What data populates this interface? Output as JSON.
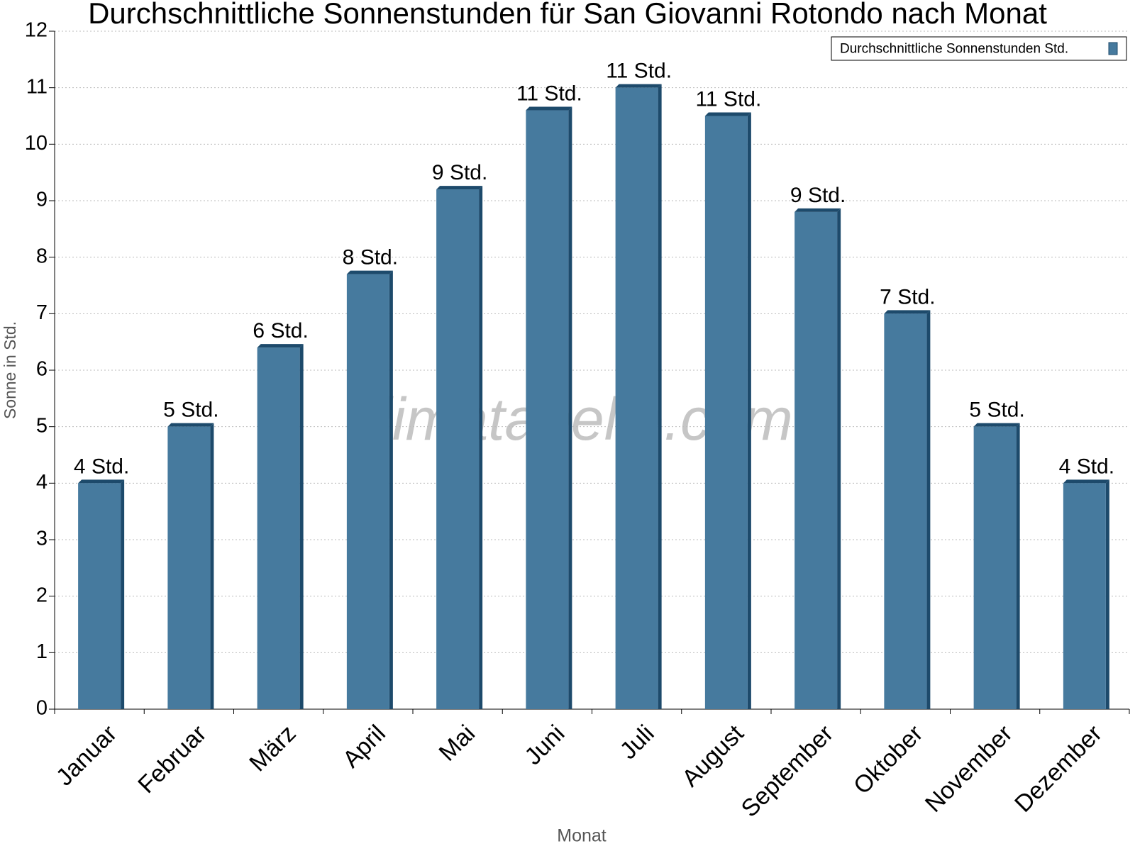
{
  "chart_data": {
    "type": "bar",
    "title": "Durchschnittliche Sonnenstunden für San Giovanni Rotondo nach Monat",
    "x_label": "Monat",
    "y_label": "Sonne in Std.",
    "watermark": "klimatabelle.com",
    "categories": [
      "Januar",
      "Februar",
      "März",
      "April",
      "Mai",
      "Juni",
      "Juli",
      "August",
      "September",
      "Oktober",
      "November",
      "Dezember"
    ],
    "series": [
      {
        "name": "Durchschnittliche Sonnenstunden Std.",
        "color": "#467a9e",
        "values": [
          4.0,
          5.0,
          6.4,
          7.7,
          9.2,
          10.6,
          11.0,
          10.5,
          8.8,
          7.0,
          5.0,
          4.0
        ],
        "value_labels": [
          "4 Std.",
          "5 Std.",
          "6 Std.",
          "8 Std.",
          "9 Std.",
          "11 Std.",
          "11 Std.",
          "11 Std.",
          "9 Std.",
          "7 Std.",
          "5 Std.",
          "4 Std."
        ]
      }
    ],
    "ylim": [
      0,
      12
    ],
    "yticks": [
      0,
      1,
      2,
      3,
      4,
      5,
      6,
      7,
      8,
      9,
      10,
      11,
      12
    ],
    "grid": true,
    "legend": "top-right"
  }
}
